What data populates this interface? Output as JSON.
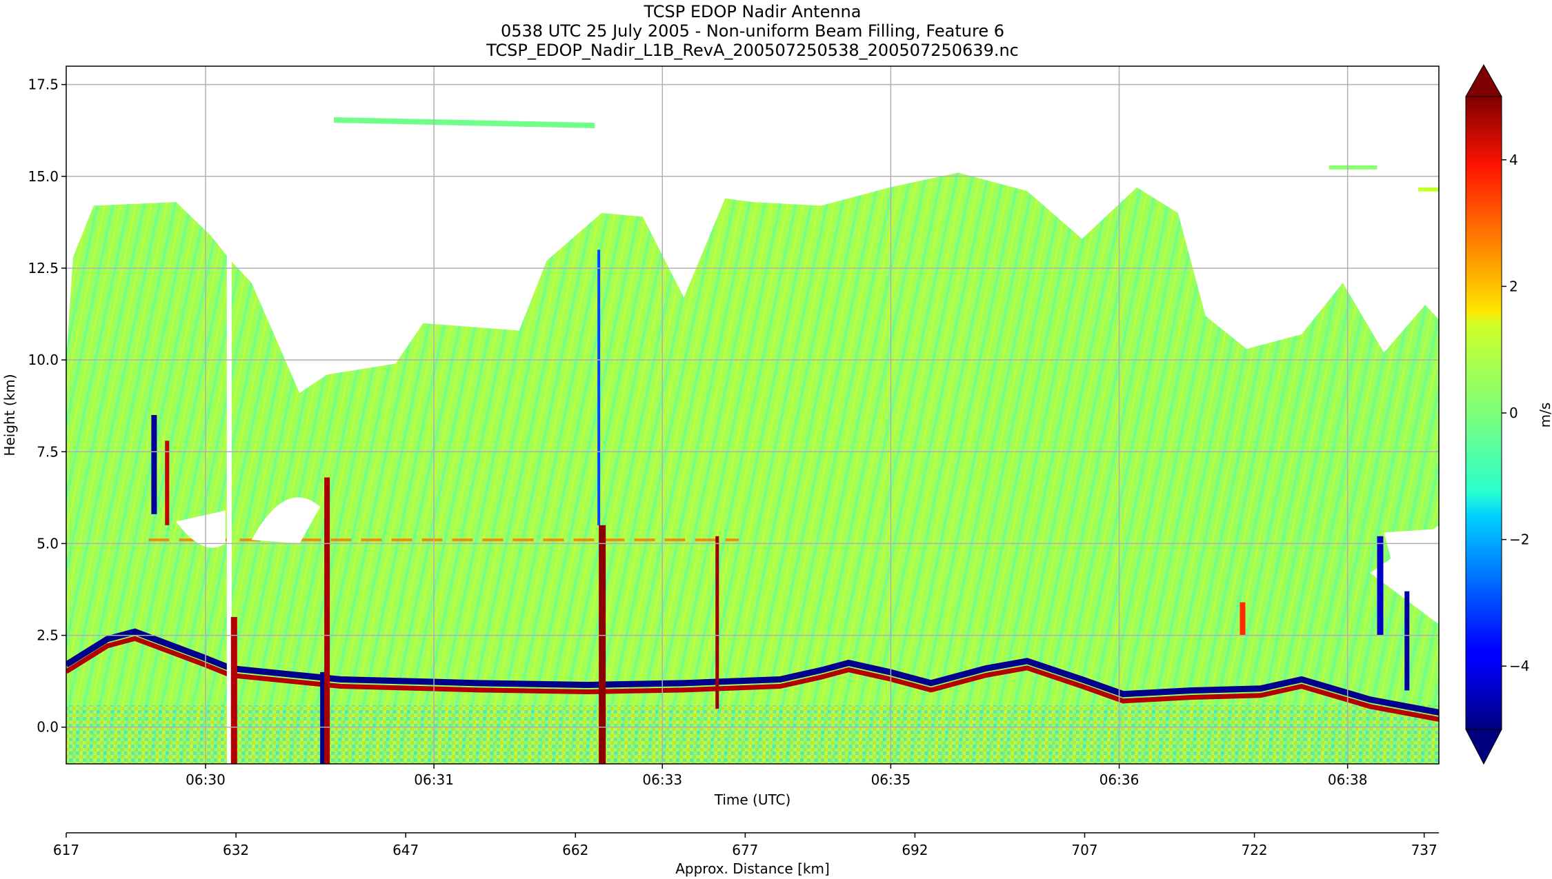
{
  "chart_data": {
    "type": "heatmap",
    "title_lines": [
      "TCSP EDOP Nadir Antenna",
      "0538 UTC 25 July 2005 - Non-uniform Beam Filling, Feature 6",
      "TCSP_EDOP_Nadir_L1B_RevA_200507250538_200507250639.nc"
    ],
    "xlabel": "Time (UTC)",
    "ylabel": "Height (km)",
    "x_ticks": [
      "06:30",
      "06:31",
      "06:33",
      "06:35",
      "06:36",
      "06:38"
    ],
    "y_ticks": [
      0.0,
      2.5,
      5.0,
      7.5,
      10.0,
      12.5,
      15.0,
      17.5
    ],
    "y_tick_labels": [
      "0.0",
      "2.5",
      "5.0",
      "7.5",
      "10.0",
      "12.5",
      "15.0",
      "17.5"
    ],
    "ylim": [
      -1.0,
      18.0
    ],
    "grid": true,
    "secondary_xaxis": {
      "label": "Approx. Distance [km]",
      "ticks": [
        617,
        632,
        647,
        662,
        677,
        692,
        707,
        722,
        737
      ],
      "tick_labels": [
        "617",
        "632",
        "647",
        "662",
        "677",
        "692",
        "707",
        "722",
        "737"
      ],
      "range": [
        617,
        738.3
      ]
    },
    "colorbar": {
      "label": "m/s",
      "vmin": -5,
      "vmax": 5,
      "extend": "both",
      "colormap": "jet",
      "ticks": [
        -4,
        -2,
        0,
        2,
        4
      ],
      "tick_labels": [
        "−4",
        "−2",
        "0",
        "2",
        "4"
      ]
    },
    "field_summary": {
      "cloud_top_left_km": 14.3,
      "cloud_top_middle_km": 11.0,
      "cloud_top_right_km": 15.1,
      "melting_layer_km": 5.1,
      "surface_band_km": [
        0.4,
        2.6
      ],
      "upper_layer_km": [
        16.2,
        16.8
      ]
    }
  }
}
